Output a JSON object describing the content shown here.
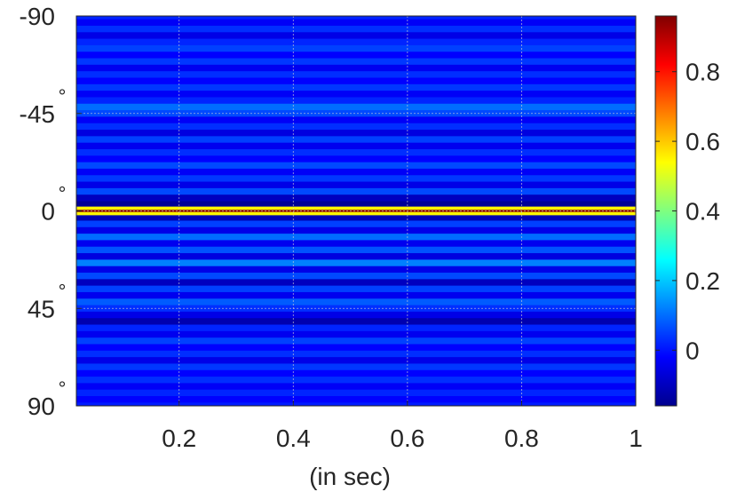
{
  "chart_data": {
    "type": "heatmap",
    "title": "",
    "xlabel": "(in sec)",
    "ylabel": "",
    "xlim": [
      0.02,
      1.0
    ],
    "ylim": [
      -90,
      90
    ],
    "y_direction": "reversed (-90 at top)",
    "x_ticks": [
      0.2,
      0.4,
      0.6,
      0.8,
      1
    ],
    "x_tick_labels": [
      "0.2",
      "0.4",
      "0.6",
      "0.8",
      "1"
    ],
    "y_ticks": [
      -90,
      -45,
      0,
      45,
      90
    ],
    "y_tick_labels": [
      "-90",
      "-45",
      "0",
      "45",
      "90"
    ],
    "y_tick_suffix": "°",
    "grid": true,
    "colormap": "jet",
    "colorbar": {
      "limits": [
        -0.16,
        0.96
      ],
      "ticks": [
        0,
        0.2,
        0.4,
        0.6,
        0.8
      ],
      "tick_labels": [
        "0",
        "0.2",
        "0.4",
        "0.6",
        "0.8"
      ]
    },
    "note_on_values": "value is constant over time; each row is one angle",
    "rows": [
      {
        "angle": -90,
        "value": 0.02
      },
      {
        "angle": -87,
        "value": -0.03
      },
      {
        "angle": -84,
        "value": 0.03
      },
      {
        "angle": -81,
        "value": -0.05
      },
      {
        "angle": -78,
        "value": 0.02
      },
      {
        "angle": -75,
        "value": 0.05
      },
      {
        "angle": -72,
        "value": -0.02
      },
      {
        "angle": -69,
        "value": 0.04
      },
      {
        "angle": -66,
        "value": -0.04
      },
      {
        "angle": -63,
        "value": 0.03
      },
      {
        "angle": -60,
        "value": -0.02
      },
      {
        "angle": -57,
        "value": 0.04
      },
      {
        "angle": -54,
        "value": -0.03
      },
      {
        "angle": -51,
        "value": 0.02
      },
      {
        "angle": -48,
        "value": 0.1
      },
      {
        "angle": -45,
        "value": 0.06
      },
      {
        "angle": -42,
        "value": -0.03
      },
      {
        "angle": -39,
        "value": 0.03
      },
      {
        "angle": -36,
        "value": -0.06
      },
      {
        "angle": -33,
        "value": 0.05
      },
      {
        "angle": -30,
        "value": -0.04
      },
      {
        "angle": -27,
        "value": 0.03
      },
      {
        "angle": -24,
        "value": -0.02
      },
      {
        "angle": -21,
        "value": 0.06
      },
      {
        "angle": -18,
        "value": -0.03
      },
      {
        "angle": -15,
        "value": 0.04
      },
      {
        "angle": -12,
        "value": -0.05
      },
      {
        "angle": -9,
        "value": 0.06
      },
      {
        "angle": -6,
        "value": -0.1
      },
      {
        "angle": -3,
        "value": -0.15
      },
      {
        "angle": -1,
        "value": 0.55
      },
      {
        "angle": 0,
        "value": 0.95
      },
      {
        "angle": 1,
        "value": 0.55
      },
      {
        "angle": 3,
        "value": -0.12
      },
      {
        "angle": 6,
        "value": 0.05
      },
      {
        "angle": 9,
        "value": -0.05
      },
      {
        "angle": 12,
        "value": 0.1
      },
      {
        "angle": 15,
        "value": -0.04
      },
      {
        "angle": 18,
        "value": 0.07
      },
      {
        "angle": 21,
        "value": -0.06
      },
      {
        "angle": 24,
        "value": 0.12
      },
      {
        "angle": 27,
        "value": -0.05
      },
      {
        "angle": 30,
        "value": 0.06
      },
      {
        "angle": 33,
        "value": -0.1
      },
      {
        "angle": 36,
        "value": 0.05
      },
      {
        "angle": 39,
        "value": -0.04
      },
      {
        "angle": 42,
        "value": 0.08
      },
      {
        "angle": 45,
        "value": 0.03
      },
      {
        "angle": 48,
        "value": -0.05
      },
      {
        "angle": 51,
        "value": -0.12
      },
      {
        "angle": 54,
        "value": 0.02
      },
      {
        "angle": 57,
        "value": -0.04
      },
      {
        "angle": 60,
        "value": 0.05
      },
      {
        "angle": 63,
        "value": -0.02
      },
      {
        "angle": 66,
        "value": 0.03
      },
      {
        "angle": 69,
        "value": -0.05
      },
      {
        "angle": 72,
        "value": 0.04
      },
      {
        "angle": 75,
        "value": -0.02
      },
      {
        "angle": 78,
        "value": 0.03
      },
      {
        "angle": 81,
        "value": -0.03
      },
      {
        "angle": 84,
        "value": 0.02
      },
      {
        "angle": 87,
        "value": -0.02
      },
      {
        "angle": 90,
        "value": 0.01
      }
    ]
  }
}
